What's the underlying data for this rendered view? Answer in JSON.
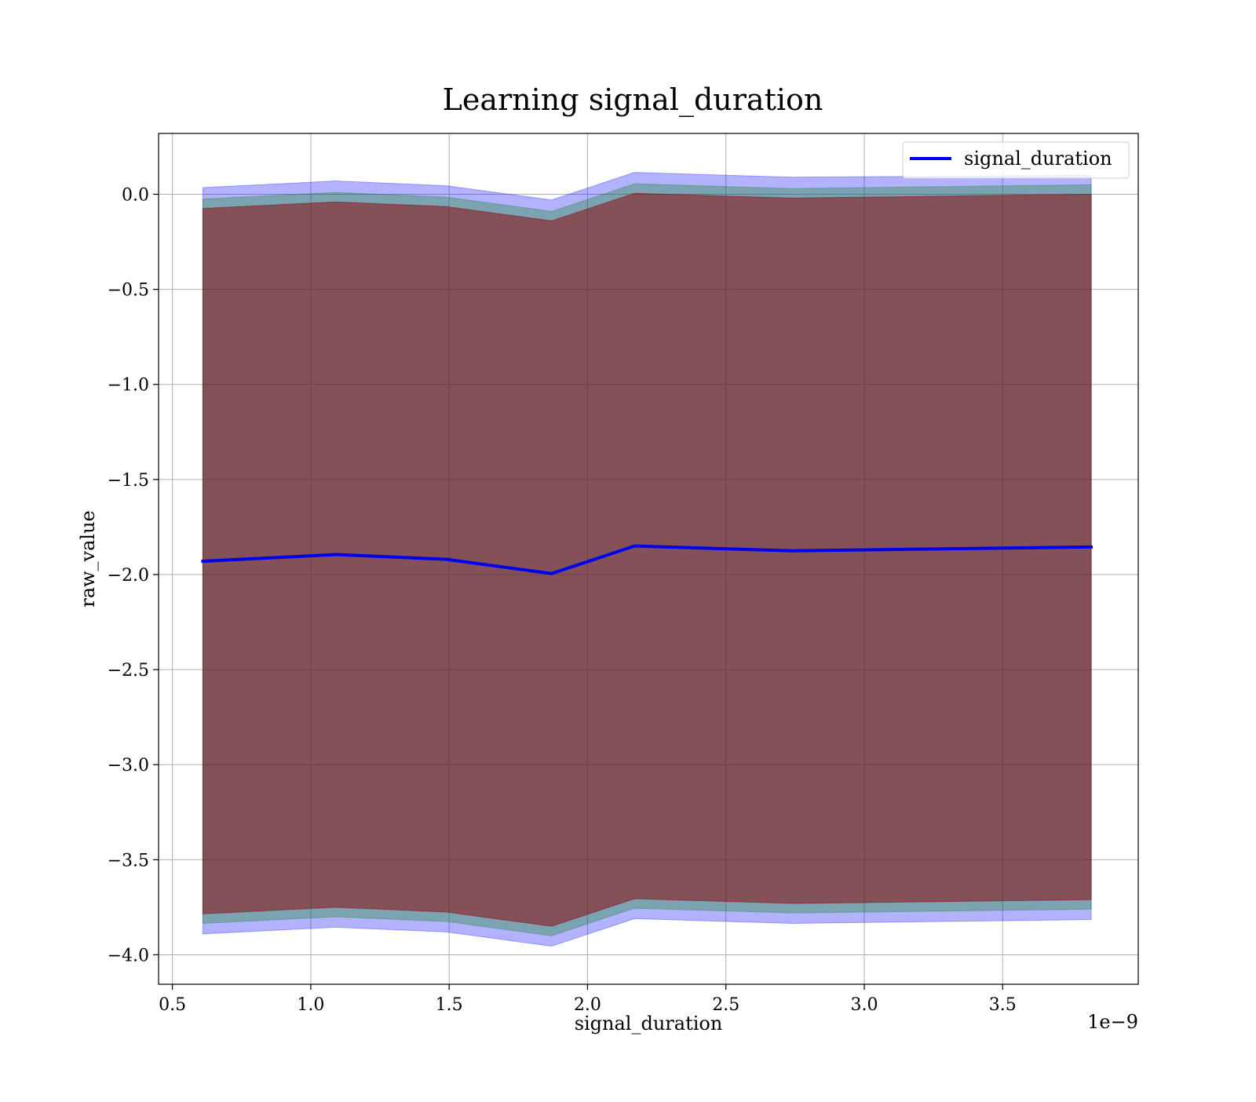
{
  "chart_data": {
    "type": "line",
    "title": "Learning signal_duration",
    "xlabel": "signal_duration",
    "ylabel": "raw_value",
    "x_offset_label": "1e−9",
    "x_scale": 1e-09,
    "xlim": [
      0.45,
      3.99
    ],
    "ylim": [
      -4.155,
      0.32
    ],
    "x_ticks": [
      0.5,
      1.0,
      1.5,
      2.0,
      2.5,
      3.0,
      3.5
    ],
    "x_tick_labels": [
      "0.5",
      "1.0",
      "1.5",
      "2.0",
      "2.5",
      "3.0",
      "3.5"
    ],
    "y_ticks": [
      0.0,
      -0.5,
      -1.0,
      -1.5,
      -2.0,
      -2.5,
      -3.0,
      -3.5,
      -4.0
    ],
    "y_tick_labels": [
      "0.0",
      "−0.5",
      "−1.0",
      "−1.5",
      "−2.0",
      "−2.5",
      "−3.0",
      "−3.5",
      "−4.0"
    ],
    "grid": true,
    "legend_position": "top-right",
    "x": [
      0.61,
      1.09,
      1.49,
      1.87,
      2.17,
      2.74,
      3.82
    ],
    "series": [
      {
        "name": "signal_duration",
        "values": [
          -1.93,
          -1.895,
          -1.92,
          -1.995,
          -1.85,
          -1.875,
          -1.855
        ],
        "color": "#0000ee"
      }
    ],
    "bands": [
      {
        "role": "outer",
        "color": "#0000ff",
        "opacity": 0.3,
        "upper": [
          0.035,
          0.07,
          0.045,
          -0.03,
          0.115,
          0.09,
          0.1
        ],
        "lower": [
          -3.89,
          -3.855,
          -3.88,
          -3.955,
          -3.81,
          -3.835,
          -3.815
        ]
      },
      {
        "role": "middle",
        "color": "#008000",
        "opacity": 0.3,
        "upper": [
          -0.025,
          0.01,
          -0.015,
          -0.09,
          0.055,
          0.03,
          0.05
        ],
        "lower": [
          -3.835,
          -3.8,
          -3.825,
          -3.9,
          -3.755,
          -3.78,
          -3.76
        ]
      },
      {
        "role": "inner",
        "color": "#8b0000",
        "opacity": 0.5,
        "upper": [
          -0.075,
          -0.04,
          -0.065,
          -0.14,
          0.005,
          -0.02,
          0.0
        ],
        "lower": [
          -3.785,
          -3.75,
          -3.775,
          -3.85,
          -3.705,
          -3.73,
          -3.71
        ]
      }
    ]
  }
}
